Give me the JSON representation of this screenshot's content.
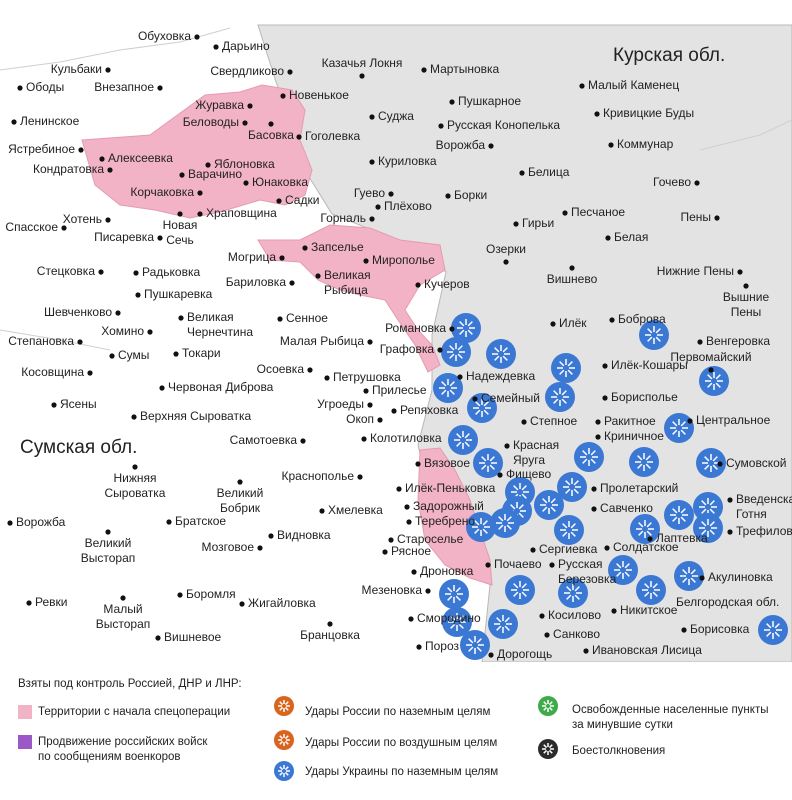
{
  "map": {
    "regions": [
      "Курская обл.",
      "Сумская обл.",
      "Белгородская обл."
    ],
    "places": [
      "Обуховка",
      "Дарьино",
      "Кульбаки",
      "Ободы",
      "Внезапное",
      "Свердликово",
      "Казачья Локня",
      "Мартыновка",
      "Журавка",
      "Новенькое",
      "Пушкарное",
      "Малый Каменец",
      "Кривицкие Буды",
      "Беловоды",
      "Ленинское",
      "Басовка",
      "Суджа",
      "Русская Конопелька",
      "Гоголевка",
      "Ястребиное",
      "Алексеевка",
      "Ворожба",
      "Коммунар",
      "Яблоновка",
      "Варачино",
      "Кондратовка",
      "Куриловка",
      "Юнаковка",
      "Корчаковка",
      "Белица",
      "Гочево",
      "Гуево",
      "Борки",
      "Садки",
      "Хотень",
      "Спасское",
      "Новая\nСечь",
      "Храповщина",
      "Плёхово",
      "Горналь",
      "Песчаное",
      "Гирьи",
      "Пены",
      "Писаревка",
      "Запселье",
      "Мирополье",
      "Озерки",
      "Белая",
      "Могрица",
      "Великая\nРыбица",
      "Стецковка",
      "Радьковка",
      "Бариловка",
      "Кучеров",
      "Вишнево",
      "Нижние Пены",
      "Пушкаревка",
      "Шевченково",
      "Великая\nЧернечтина",
      "Сенное",
      "Вышние\nПены",
      "Романовка",
      "Илёк",
      "Боброва",
      "Хомино",
      "Венгеровка",
      "Степановка",
      "Малая Рыбица",
      "Графовка",
      "Первомайский",
      "Сумы",
      "Токари",
      "Косовщина",
      "Илёк-Кошары",
      "Надеждевка",
      "Осоевка",
      "Петрушовка",
      "Червоная Диброва",
      "Прилесье",
      "Семейный",
      "Бориcполье",
      "Ясены",
      "Угроеды",
      "Репяховка",
      "Верхняя Сыроватка",
      "Окоп",
      "Ракитное",
      "Центральное",
      "Степное",
      "Колотиловка",
      "Самотоевка",
      "Криничное",
      "Красная\nЯруга",
      "Вязовое",
      "Сумовской",
      "Фищево",
      "Нижняя\nСыроватка",
      "Краснополье",
      "Илёк-Пеньковка",
      "Пролетарский",
      "Великий\nБобрик",
      "Введенская\nГотня",
      "Задорожный",
      "Хмелевка",
      "Ворожба",
      "Братское",
      "Теребрено",
      "Савченко",
      "Трефиловка",
      "Лаптевка",
      "Видновка",
      "Староселье",
      "Великий\nВысторап",
      "Мозговое",
      "Солдатское",
      "Сергиевка",
      "Русская\nБерезовка",
      "Почаево",
      "Рясное",
      "Дроновка",
      "Акулиновка",
      "Ревки",
      "Боромля",
      "Мезеновка",
      "Жигайловка",
      "Малый\nВысторап",
      "Никитское",
      "Косилово",
      "Смородино",
      "Борисовка",
      "Вишневое",
      "Бранцовка",
      "Санково",
      "Пороз",
      "Дорогощь",
      "Ивановская Лисица"
    ]
  },
  "legend": {
    "heading": "Взяты под контроль Россией, ДНР и ЛНР:",
    "items": [
      "Территории с начала спецоперации",
      "Продвижение российских войск\nпо сообщениям военкоров",
      "Удары России по наземным целям",
      "Удары России по воздушным целям",
      "Удары Украины по наземным целям",
      "Освобожденные населенные пункты\nза минувшие сутки",
      "Боестолкновения"
    ]
  }
}
